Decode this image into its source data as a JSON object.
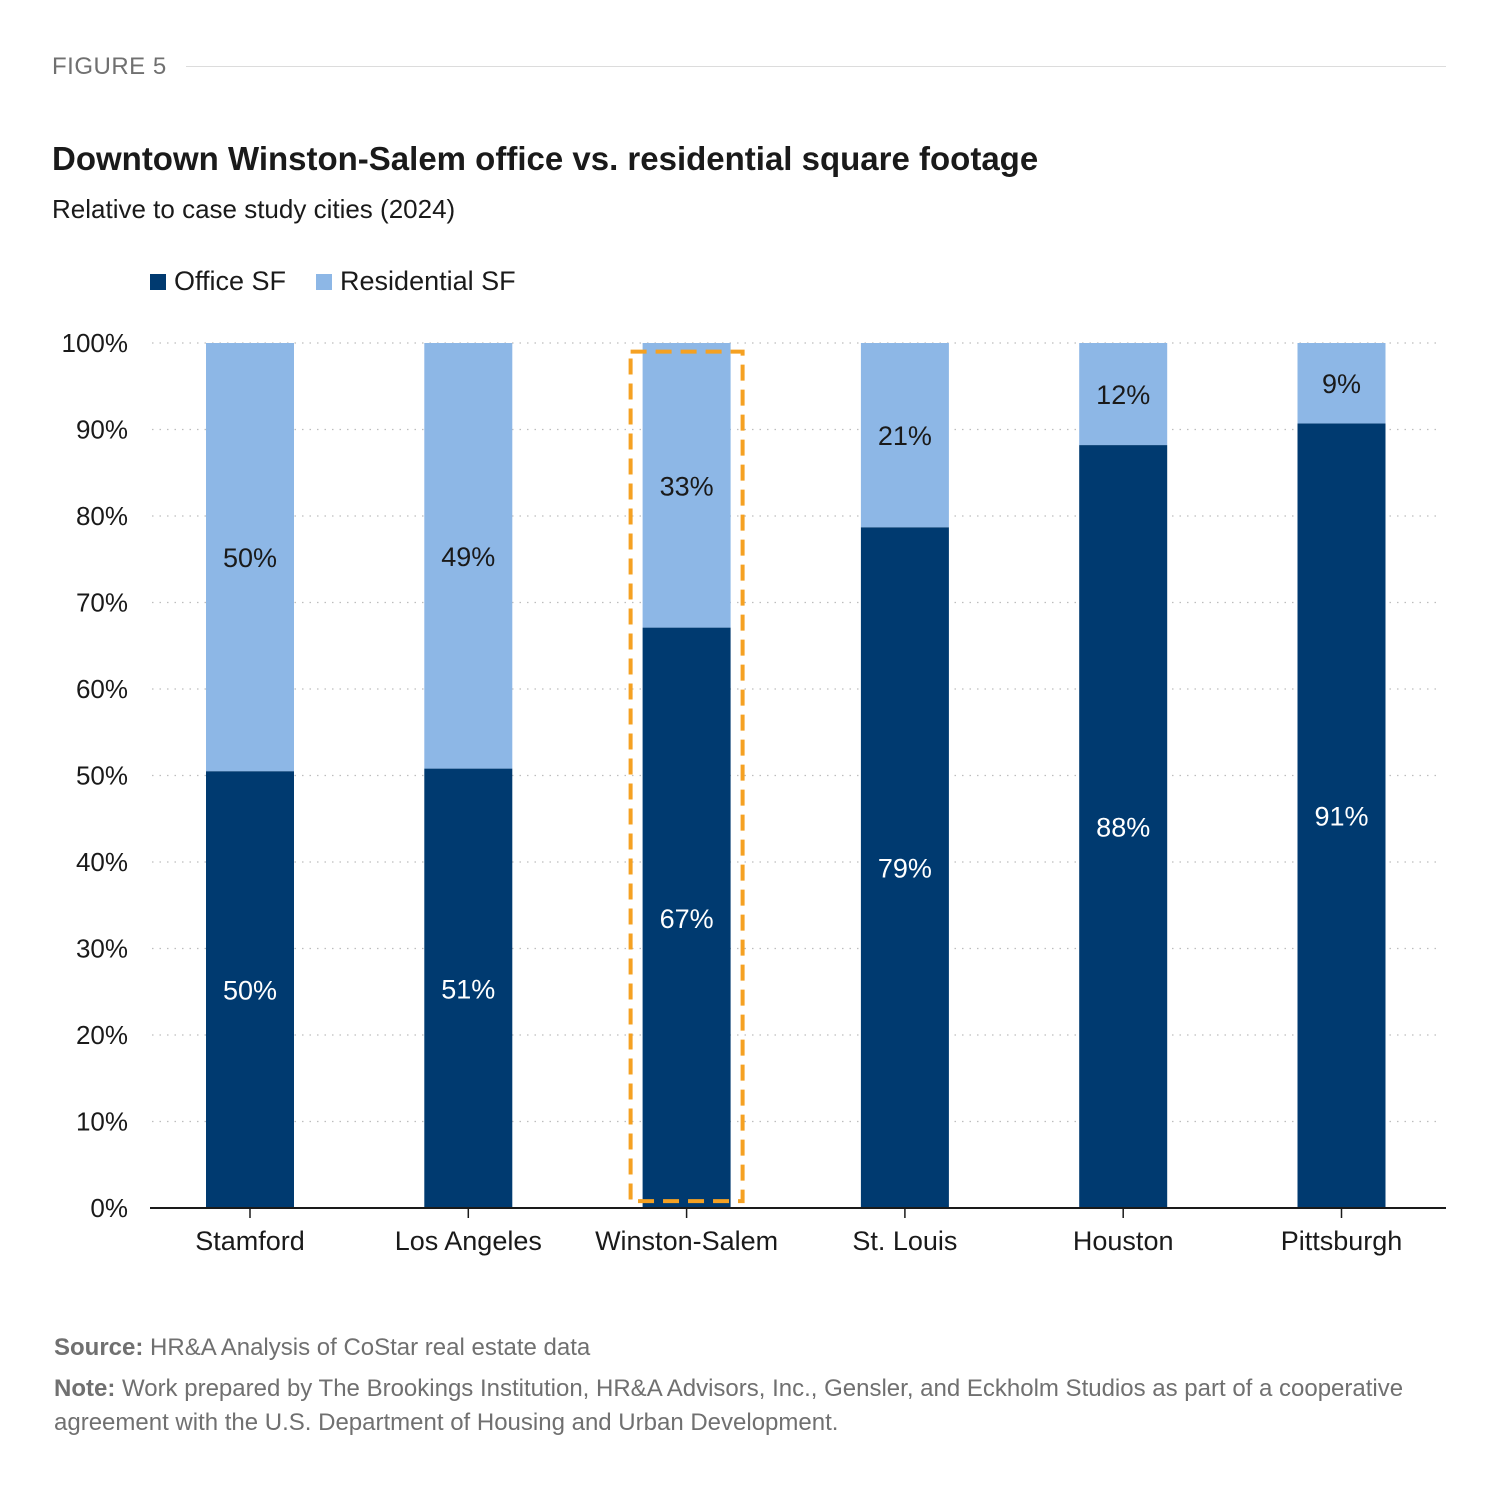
{
  "figure_label": "FIGURE 5",
  "title": "Downtown Winston-Salem office vs. residential square footage",
  "subtitle": "Relative to case study cities (2024)",
  "legend": [
    {
      "name": "Office SF",
      "color": "#003a70"
    },
    {
      "name": "Residential SF",
      "color": "#8db7e6"
    }
  ],
  "chart_data": {
    "type": "bar",
    "stacked": true,
    "categories": [
      "Stamford",
      "Los Angeles",
      "Winston-Salem",
      "St. Louis",
      "Houston",
      "Pittsburgh"
    ],
    "series": [
      {
        "name": "Office SF",
        "values": [
          50.5,
          50.8,
          67.1,
          78.7,
          88.2,
          90.7
        ],
        "labels": [
          "50%",
          "51%",
          "67%",
          "79%",
          "88%",
          "91%"
        ],
        "color": "#003a70"
      },
      {
        "name": "Residential SF",
        "values": [
          49.5,
          49.2,
          32.9,
          21.3,
          11.8,
          9.3
        ],
        "labels": [
          "50%",
          "49%",
          "33%",
          "21%",
          "12%",
          "9%"
        ],
        "color": "#8db7e6"
      }
    ],
    "y_ticks": [
      "0%",
      "10%",
      "20%",
      "30%",
      "40%",
      "50%",
      "60%",
      "70%",
      "80%",
      "90%",
      "100%"
    ],
    "ylim": [
      0,
      100
    ],
    "grid": true,
    "legend_position": "top-left",
    "highlight_category": "Winston-Salem",
    "highlight_color": "#f5a122"
  },
  "source_label": "Source:",
  "source_text": " HR&A Analysis of CoStar real estate data",
  "note_label": "Note:",
  "note_text": " Work prepared by The Brookings Institution, HR&A Advisors, Inc., Gensler, and Eckholm Studios as part of a cooperative agreement with the U.S. Department of Housing and Urban Development."
}
